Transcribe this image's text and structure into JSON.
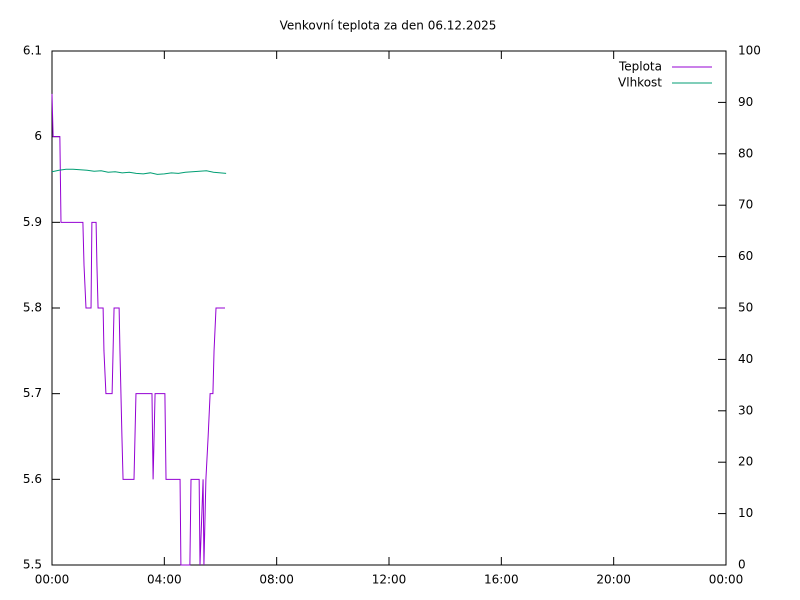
{
  "chart_data": {
    "type": "line",
    "title": "Venkovní teplota za den 06.12.2025",
    "xlim": [
      0,
      24
    ],
    "xticks": [
      {
        "value": 0,
        "label": "00:00"
      },
      {
        "value": 4,
        "label": "04:00"
      },
      {
        "value": 8,
        "label": "08:00"
      },
      {
        "value": 12,
        "label": "12:00"
      },
      {
        "value": 16,
        "label": "16:00"
      },
      {
        "value": 20,
        "label": "20:00"
      },
      {
        "value": 24,
        "label": "00:00"
      }
    ],
    "ylim": [
      5.5,
      6.1
    ],
    "yticks": [
      5.5,
      5.6,
      5.7,
      5.8,
      5.9,
      6,
      6.1
    ],
    "y2lim": [
      0,
      100
    ],
    "y2ticks": [
      0,
      10,
      20,
      30,
      40,
      50,
      60,
      70,
      80,
      90,
      100
    ],
    "legend": "top right",
    "series": [
      {
        "name": "Teplota",
        "color": "#9400d3",
        "axis": "y",
        "x": [
          0,
          0.04,
          0.28,
          0.32,
          1.1,
          1.14,
          1.21,
          1.39,
          1.42,
          1.57,
          1.6,
          1.64,
          1.82,
          1.85,
          1.92,
          2.14,
          2.21,
          2.39,
          2.42,
          2.49,
          2.53,
          2.92,
          2.99,
          3.56,
          3.6,
          3.67,
          4.02,
          4.06,
          4.56,
          4.59,
          4.91,
          4.95,
          5.24,
          5.27,
          5.38,
          5.41,
          5.48,
          5.56,
          5.63,
          5.73,
          5.77,
          5.84,
          6.16
        ],
        "values": [
          6.05,
          6.0,
          6.0,
          5.9,
          5.9,
          5.85,
          5.8,
          5.8,
          5.9,
          5.9,
          5.85,
          5.8,
          5.8,
          5.75,
          5.7,
          5.7,
          5.8,
          5.8,
          5.75,
          5.65,
          5.6,
          5.6,
          5.7,
          5.7,
          5.6,
          5.7,
          5.7,
          5.6,
          5.6,
          5.5,
          5.5,
          5.6,
          5.6,
          5.5,
          5.6,
          5.5,
          5.6,
          5.65,
          5.7,
          5.7,
          5.75,
          5.8,
          5.8
        ]
      },
      {
        "name": "Vlhkost",
        "color": "#009e73",
        "axis": "y2",
        "x": [
          0,
          0.25,
          0.5,
          0.75,
          1,
          1.25,
          1.5,
          1.75,
          2,
          2.25,
          2.5,
          2.75,
          3,
          3.25,
          3.5,
          3.75,
          4,
          4.25,
          4.5,
          4.75,
          5,
          5.25,
          5.5,
          5.75,
          6,
          6.2
        ],
        "values": [
          76.5,
          76.8,
          77.0,
          77.0,
          76.9,
          76.8,
          76.6,
          76.7,
          76.4,
          76.5,
          76.3,
          76.4,
          76.2,
          76.1,
          76.3,
          76.0,
          76.1,
          76.3,
          76.2,
          76.4,
          76.5,
          76.6,
          76.7,
          76.4,
          76.3,
          76.2
        ]
      }
    ]
  }
}
